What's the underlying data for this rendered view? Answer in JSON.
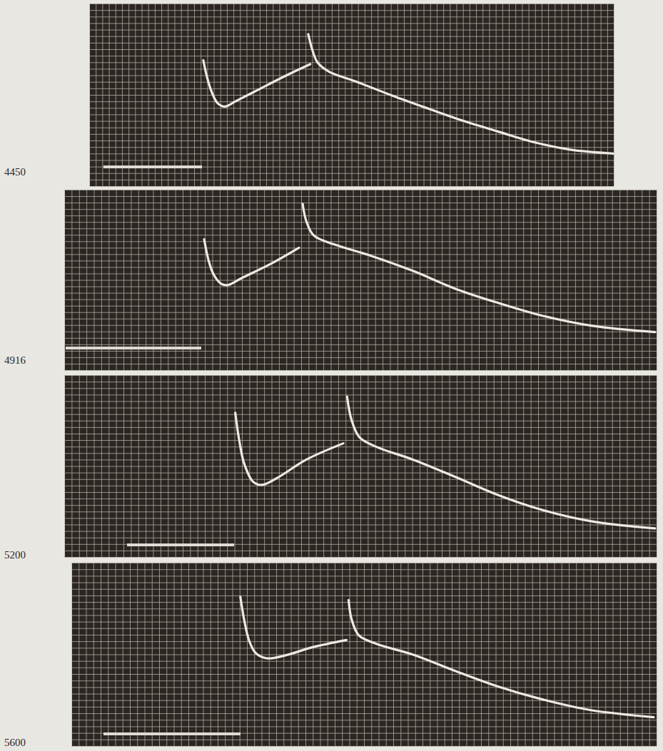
{
  "chart_data": [
    {
      "type": "line",
      "title": "4450",
      "grid": true,
      "tick_labels": false,
      "xlim": [
        0,
        80
      ],
      "ylim": [
        0,
        28
      ],
      "xticks": [
        0,
        1,
        2,
        3,
        4,
        5,
        6,
        7,
        8,
        9,
        10,
        11,
        12,
        13,
        14,
        15,
        16,
        17,
        18,
        19,
        20,
        21,
        22,
        23,
        24,
        25,
        26,
        27,
        28,
        29,
        30,
        31,
        32,
        33,
        34,
        35,
        36,
        37,
        38,
        39,
        40,
        41,
        42,
        43,
        44,
        45,
        46,
        47,
        48,
        49,
        50,
        51,
        52,
        53,
        54,
        55,
        56,
        57,
        58,
        59,
        60,
        61,
        62,
        63,
        64,
        65,
        66,
        67,
        68,
        69,
        70,
        71,
        72,
        73,
        74,
        75,
        76,
        77,
        78,
        79,
        80
      ],
      "yticks": [
        0,
        1,
        2,
        3,
        4,
        5,
        6,
        7,
        8,
        9,
        10,
        11,
        12,
        13,
        14,
        15,
        16,
        17,
        18,
        19,
        20,
        21,
        22,
        23,
        24,
        25,
        26,
        27,
        28
      ],
      "x": [
        17.4,
        18.0,
        18.7,
        19.6,
        20.7,
        22.3,
        25.6,
        29.9,
        33.7,
        33.5,
        33.4,
        34.0,
        34.8,
        36.5,
        40.8,
        46.2,
        51.7,
        57.1,
        62.6,
        68.0,
        73.4,
        80
      ],
      "series": [
        {
          "color": "#ecebe3",
          "values": [
            19.3,
            16.6,
            14.4,
            12.7,
            12.2,
            13.0,
            14.7,
            16.9,
            18.7,
            null,
            23.3,
            21.0,
            19.0,
            17.6,
            16.0,
            13.9,
            11.9,
            10.0,
            8.3,
            6.7,
            5.6,
            5.0
          ]
        }
      ]
    },
    {
      "type": "line",
      "title": "4916",
      "grid": true,
      "tick_labels": false,
      "xlim": [
        0,
        80
      ],
      "ylim": [
        0,
        28
      ],
      "xticks": [
        0,
        1,
        2,
        3,
        4,
        5,
        6,
        7,
        8,
        9,
        10,
        11,
        12,
        13,
        14,
        15,
        16,
        17,
        18,
        19,
        20,
        21,
        22,
        23,
        24,
        25,
        26,
        27,
        28,
        29,
        30,
        31,
        32,
        33,
        34,
        35,
        36,
        37,
        38,
        39,
        40,
        41,
        42,
        43,
        44,
        45,
        46,
        47,
        48,
        49,
        50,
        51,
        52,
        53,
        54,
        55,
        56,
        57,
        58,
        59,
        60,
        61,
        62,
        63,
        64,
        65,
        66,
        67,
        68,
        69,
        70,
        71,
        72,
        73,
        74,
        75,
        76,
        77,
        78,
        79,
        80
      ],
      "yticks": [
        0,
        1,
        2,
        3,
        4,
        5,
        6,
        7,
        8,
        9,
        10,
        11,
        12,
        13,
        14,
        15,
        16,
        17,
        18,
        19,
        20,
        21,
        22,
        23,
        24,
        25,
        26,
        27,
        28
      ],
      "x": [
        18.9,
        19.5,
        20.2,
        21.2,
        22.1,
        24.0,
        27.9,
        31.7,
        32.0,
        32.2,
        32.7,
        33.7,
        36.5,
        41.3,
        47.1,
        52.9,
        58.7,
        64.4,
        71.2,
        79.8
      ],
      "series": [
        {
          "color": "#ecebe3",
          "values": [
            20.3,
            17.0,
            14.8,
            13.4,
            13.2,
            14.3,
            16.5,
            19.0,
            null,
            25.8,
            23.1,
            20.9,
            19.5,
            17.8,
            15.4,
            12.6,
            10.4,
            8.5,
            6.9,
            5.9
          ]
        }
      ]
    },
    {
      "type": "line",
      "title": "5200",
      "grid": true,
      "tick_labels": false,
      "xlim": [
        0,
        80
      ],
      "ylim": [
        0,
        28
      ],
      "xticks": [
        0,
        1,
        2,
        3,
        4,
        5,
        6,
        7,
        8,
        9,
        10,
        11,
        12,
        13,
        14,
        15,
        16,
        17,
        18,
        19,
        20,
        21,
        22,
        23,
        24,
        25,
        26,
        27,
        28,
        29,
        30,
        31,
        32,
        33,
        34,
        35,
        36,
        37,
        38,
        39,
        40,
        41,
        42,
        43,
        44,
        45,
        46,
        47,
        48,
        49,
        50,
        51,
        52,
        53,
        54,
        55,
        56,
        57,
        58,
        59,
        60,
        61,
        62,
        63,
        64,
        65,
        66,
        67,
        68,
        69,
        70,
        71,
        72,
        73,
        74,
        75,
        76,
        77,
        78,
        79,
        80
      ],
      "yticks": [
        0,
        1,
        2,
        3,
        4,
        5,
        6,
        7,
        8,
        9,
        10,
        11,
        12,
        13,
        14,
        15,
        16,
        17,
        18,
        19,
        20,
        21,
        22,
        23,
        24,
        25,
        26,
        27,
        28
      ],
      "x": [
        23.1,
        23.6,
        24.3,
        25.5,
        26.7,
        28.8,
        32.7,
        37.7,
        38.0,
        38.2,
        38.8,
        39.9,
        42.3,
        47.1,
        52.9,
        58.7,
        64.4,
        71.2,
        79.8
      ],
      "series": [
        {
          "color": "#ecebe3",
          "values": [
            22.2,
            18.2,
            14.4,
            11.6,
            11.1,
            12.2,
            15.0,
            17.5,
            null,
            24.7,
            21.1,
            18.4,
            16.9,
            15.0,
            12.3,
            9.5,
            7.3,
            5.5,
            4.4
          ]
        }
      ]
    },
    {
      "type": "line",
      "title": "5600",
      "grid": true,
      "tick_labels": false,
      "xlim": [
        0,
        80
      ],
      "ylim": [
        0,
        28
      ],
      "xticks": [
        0,
        1,
        2,
        3,
        4,
        5,
        6,
        7,
        8,
        9,
        10,
        11,
        12,
        13,
        14,
        15,
        16,
        17,
        18,
        19,
        20,
        21,
        22,
        23,
        24,
        25,
        26,
        27,
        28,
        29,
        30,
        31,
        32,
        33,
        34,
        35,
        36,
        37,
        38,
        39,
        40,
        41,
        42,
        43,
        44,
        45,
        46,
        47,
        48,
        49,
        50,
        51,
        52,
        53,
        54,
        55,
        56,
        57,
        58,
        59,
        60,
        61,
        62,
        63,
        64,
        65,
        66,
        67,
        68,
        69,
        70,
        71,
        72,
        73,
        74,
        75,
        76,
        77,
        78,
        79,
        80
      ],
      "yticks": [
        0,
        1,
        2,
        3,
        4,
        5,
        6,
        7,
        8,
        9,
        10,
        11,
        12,
        13,
        14,
        15,
        16,
        17,
        18,
        19,
        20,
        21,
        22,
        23,
        24,
        25,
        26,
        27,
        28
      ],
      "x": [
        23.1,
        23.6,
        24.3,
        25.2,
        26.7,
        29.1,
        33.0,
        37.6,
        37.8,
        37.9,
        38.3,
        39.3,
        41.7,
        46.6,
        52.4,
        58.3,
        64.1,
        70.9,
        79.6
      ],
      "series": [
        {
          "color": "#ecebe3",
          "values": [
            22.8,
            19.4,
            16.1,
            14.2,
            13.4,
            13.8,
            15.1,
            16.2,
            null,
            22.3,
            19.4,
            16.9,
            15.6,
            14.0,
            11.5,
            9.1,
            7.2,
            5.5,
            4.4
          ]
        }
      ]
    }
  ]
}
